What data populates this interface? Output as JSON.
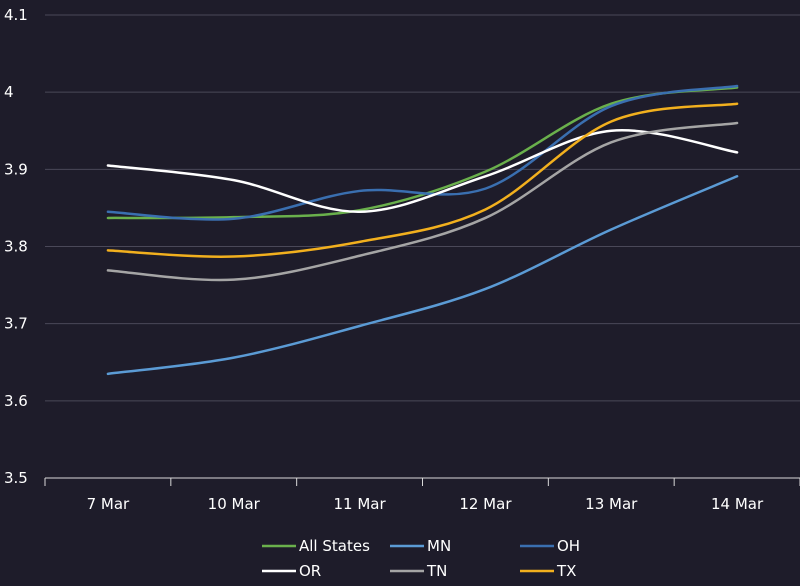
{
  "chart_data": {
    "type": "line",
    "categories": [
      "7 Mar",
      "10 Mar",
      "11 Mar",
      "12 Mar",
      "13 Mar",
      "14 Mar"
    ],
    "ylim": [
      3.5,
      4.1
    ],
    "yticks": [
      3.5,
      3.6,
      3.7,
      3.8,
      3.9,
      4,
      4.1
    ],
    "grid": "horizontal",
    "legend_position": "bottom",
    "series": [
      {
        "name": "All States",
        "color": "#6ab04c",
        "values": [
          3.837,
          3.838,
          3.847,
          3.897,
          3.985,
          4.006
        ]
      },
      {
        "name": "MN",
        "color": "#5b9bd5",
        "values": [
          3.635,
          3.656,
          3.697,
          3.745,
          3.822,
          3.891
        ]
      },
      {
        "name": "OH",
        "color": "#3a6fb0",
        "values": [
          3.845,
          3.836,
          3.872,
          3.875,
          3.982,
          4.008
        ]
      },
      {
        "name": "OR",
        "color": "#ffffff",
        "values": [
          3.905,
          3.886,
          3.845,
          3.891,
          3.95,
          3.922
        ]
      },
      {
        "name": "TN",
        "color": "#a5a5a5",
        "values": [
          3.769,
          3.757,
          3.788,
          3.837,
          3.935,
          3.96
        ]
      },
      {
        "name": "TX",
        "color": "#f2b01e",
        "values": [
          3.795,
          3.787,
          3.806,
          3.848,
          3.962,
          3.985
        ]
      }
    ]
  }
}
